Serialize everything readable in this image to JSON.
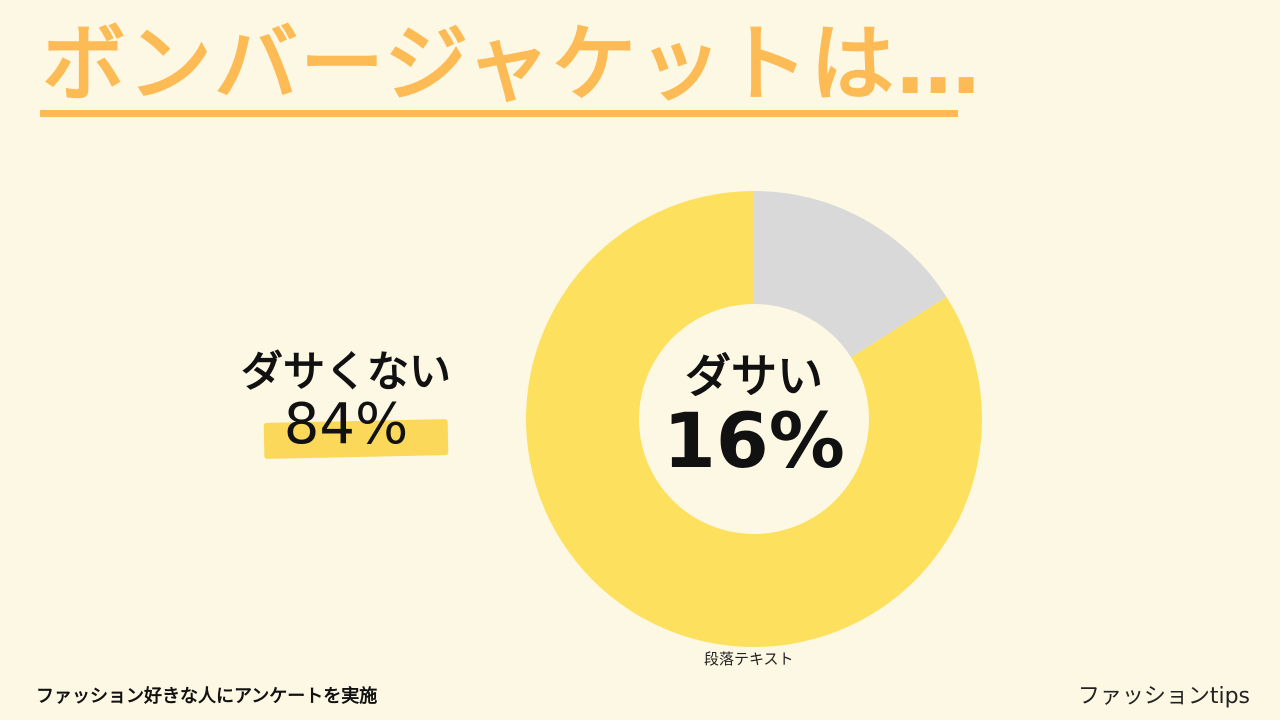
{
  "title": "ボンバージャケットは…",
  "left_callout": {
    "label": "ダサくない",
    "value": "84%"
  },
  "center_callout": {
    "label": "ダサい",
    "value": "16%"
  },
  "caption": "段落テキスト",
  "footer_note": "ファッション好きな人にアンケートを実施",
  "brand": "ファッションtips",
  "colors": {
    "background": "#fdf8e3",
    "accent": "#fcbb55",
    "slice_main": "#fde05e",
    "slice_minor": "#d9d9d9",
    "highlight": "#fbd85a"
  },
  "chart_data": {
    "type": "pie",
    "categories": [
      "ダサい",
      "ダサくない"
    ],
    "values": [
      16,
      84
    ],
    "colors": [
      "#d9d9d9",
      "#fde05e"
    ]
  }
}
